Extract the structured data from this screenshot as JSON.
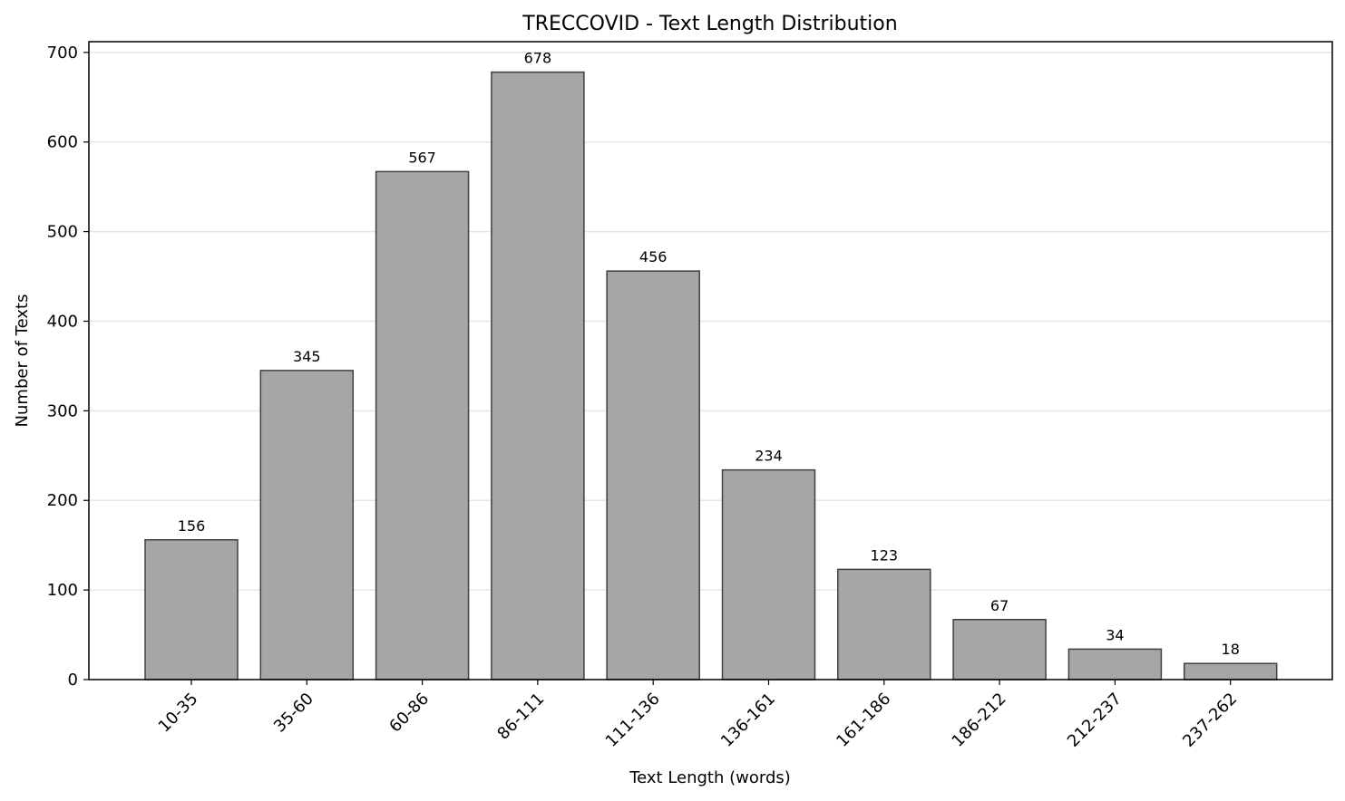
{
  "chart_data": {
    "type": "bar",
    "title": "TRECCOVID - Text Length Distribution",
    "xlabel": "Text Length (words)",
    "ylabel": "Number of Texts",
    "categories": [
      "10-35",
      "35-60",
      "60-86",
      "86-111",
      "111-136",
      "136-161",
      "161-186",
      "186-212",
      "212-237",
      "237-262"
    ],
    "values": [
      156,
      345,
      567,
      678,
      456,
      234,
      123,
      67,
      34,
      18
    ],
    "ylim": [
      0,
      712
    ],
    "yticks": [
      0,
      100,
      200,
      300,
      400,
      500,
      600,
      700
    ],
    "grid": "y",
    "legend": "none",
    "data_labels": true,
    "colors": {
      "bar_fill": "#a6a6a6",
      "bar_edge": "#404040",
      "grid": "#e6e6e6",
      "axes": "#000000"
    }
  }
}
